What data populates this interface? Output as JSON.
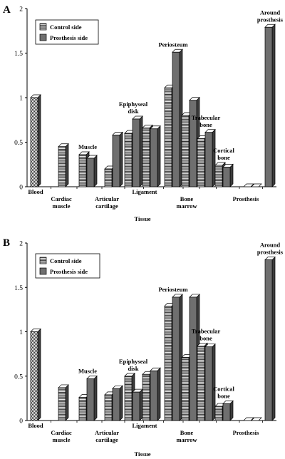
{
  "chart_data": [
    {
      "type": "bar",
      "panel_label": "A",
      "xlabel": "Tissue",
      "ylim": [
        0,
        2
      ],
      "yticks": [
        "0",
        "0.5",
        "1",
        "1.5",
        "2"
      ],
      "legend": {
        "placement": "top-left",
        "entries": [
          "Control side",
          "Prosthesis side"
        ]
      },
      "categories": [
        "Blood",
        "Cardiac muscle",
        "Muscle",
        "Articular cartilage",
        "Epiphyseal disk",
        "Ligament",
        "Periosteum",
        "Bone marrow",
        "Trabecular bone",
        "Cortical bone",
        "Prosthesis",
        "Around prosthesis"
      ],
      "series": [
        {
          "name": "Control side",
          "values": [
            1.0,
            0.45,
            0.36,
            0.2,
            0.6,
            0.66,
            1.11,
            0.8,
            0.54,
            0.24,
            0.0,
            null
          ]
        },
        {
          "name": "Prosthesis side",
          "values": [
            null,
            null,
            0.32,
            0.58,
            0.76,
            0.65,
            1.51,
            0.97,
            0.61,
            0.22,
            0.0,
            1.79
          ]
        }
      ],
      "axis_labels": [
        {
          "text": [
            "Blood"
          ],
          "row": 0
        },
        {
          "text": [
            "Cardiac",
            "muscle"
          ],
          "row": 1
        },
        {
          "text": [
            "Articular",
            "cartilage"
          ],
          "row": 1
        },
        {
          "text": [
            "Ligament"
          ],
          "row": 0
        },
        {
          "text": [
            "Bone",
            "marrow"
          ],
          "row": 1
        },
        {
          "text": [
            "Prosthesis"
          ],
          "row": 1
        }
      ],
      "annotations": [
        {
          "text": [
            "Muscle"
          ],
          "category": 2
        },
        {
          "text": [
            "Epiphyseal",
            "disk"
          ],
          "category": 4
        },
        {
          "text": [
            "Periosteum"
          ],
          "category": 6
        },
        {
          "text": [
            "Trabecular",
            "bone"
          ],
          "category": 8
        },
        {
          "text": [
            "Cortical",
            "bone"
          ],
          "category": 9
        },
        {
          "text": [
            "Around",
            "prosthesis"
          ],
          "category": 11
        }
      ]
    },
    {
      "type": "bar",
      "panel_label": "B",
      "xlabel": "Tissue",
      "ylim": [
        0,
        2
      ],
      "yticks": [
        "0",
        "0.5",
        "1",
        "1.5",
        "2"
      ],
      "legend": {
        "placement": "top-left",
        "entries": [
          "Control side",
          "Prosthesis side"
        ]
      },
      "categories": [
        "Blood",
        "Cardiac muscle",
        "Muscle",
        "Articular cartilage",
        "Epiphyseal disk",
        "Ligament",
        "Periosteum",
        "Bone marrow",
        "Trabecular bone",
        "Cortical bone",
        "Prosthesis",
        "Around prosthesis"
      ],
      "series": [
        {
          "name": "Control side",
          "values": [
            1.0,
            0.37,
            0.26,
            0.29,
            0.5,
            0.52,
            1.29,
            0.71,
            0.84,
            0.16,
            0.0,
            null
          ]
        },
        {
          "name": "Prosthesis side",
          "values": [
            null,
            null,
            0.47,
            0.36,
            0.32,
            0.56,
            1.39,
            1.39,
            0.83,
            0.19,
            0.0,
            1.81
          ]
        }
      ],
      "axis_labels": [
        {
          "text": [
            "Blood"
          ],
          "row": 0
        },
        {
          "text": [
            "Cardiac",
            "muscle"
          ],
          "row": 1
        },
        {
          "text": [
            "Articular",
            "cartilage"
          ],
          "row": 1
        },
        {
          "text": [
            "Ligament"
          ],
          "row": 0
        },
        {
          "text": [
            "Bone",
            "marrow"
          ],
          "row": 1
        },
        {
          "text": [
            "Prosthesis"
          ],
          "row": 1
        }
      ],
      "annotations": [
        {
          "text": [
            "Muscle"
          ],
          "category": 2
        },
        {
          "text": [
            "Epiphyseal",
            "disk"
          ],
          "category": 4
        },
        {
          "text": [
            "Periosteum"
          ],
          "category": 6
        },
        {
          "text": [
            "Trabecular",
            "bone"
          ],
          "category": 8
        },
        {
          "text": [
            "Cortical",
            "bone"
          ],
          "category": 9
        },
        {
          "text": [
            "Around",
            "prosthesis"
          ],
          "category": 11
        }
      ]
    }
  ]
}
